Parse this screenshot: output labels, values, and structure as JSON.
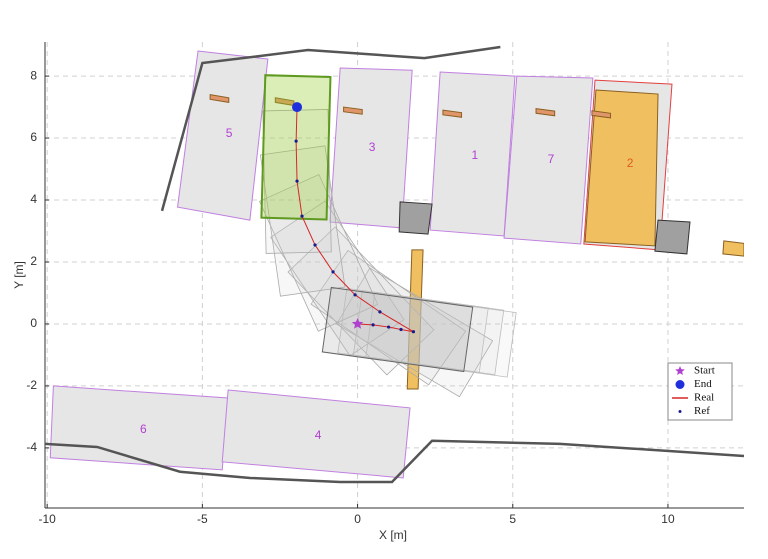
{
  "chart_data": {
    "type": "path",
    "xlabel": "X [m]",
    "ylabel": "Y [m]",
    "xlim": [
      -10.07,
      12.45
    ],
    "ylim": [
      -5.94,
      9.1
    ],
    "xticks": [
      -10,
      -5,
      0,
      5,
      10
    ],
    "yticks": [
      -4,
      -2,
      0,
      2,
      4,
      6,
      8
    ],
    "grid": true,
    "legend_corner": "lower right",
    "boundaries": [
      {
        "x": [
          -6.3,
          -5.0,
          -1.6,
          2.15,
          4.6
        ],
        "y": [
          3.65,
          8.42,
          8.84,
          8.58,
          8.94
        ]
      },
      {
        "x": [
          -10.07,
          -8.39,
          -5.72,
          -3.46,
          -0.56,
          1.11,
          2.4,
          6.52,
          12.45
        ],
        "y": [
          -3.87,
          -3.97,
          -4.77,
          -4.97,
          -5.1,
          -5.1,
          -3.77,
          -3.87,
          -4.26
        ]
      }
    ],
    "slots": [
      {
        "label": "5",
        "color": "#b040d0",
        "x": [
          -5.14,
          -2.89,
          -3.47,
          -5.8
        ],
        "y": [
          8.81,
          8.55,
          3.35,
          3.77
        ],
        "label_x": -4.14,
        "label_y": 6.13
      },
      {
        "label": "3",
        "color": "#b040d0",
        "x": [
          -0.56,
          1.76,
          1.43,
          -0.89
        ],
        "y": [
          8.26,
          8.19,
          3.1,
          3.29
        ],
        "label_x": 0.47,
        "label_y": 5.68
      },
      {
        "label": "1",
        "color": "#b040d0",
        "x": [
          2.66,
          5.07,
          4.72,
          2.34
        ],
        "y": [
          8.13,
          8.0,
          2.84,
          3.03
        ],
        "label_x": 3.78,
        "label_y": 5.42
      },
      {
        "label": "7",
        "color": "#b040d0",
        "x": [
          5.13,
          7.58,
          7.19,
          4.72
        ],
        "y": [
          8.0,
          7.94,
          2.58,
          2.77
        ],
        "label_x": 6.23,
        "label_y": 5.29
      },
      {
        "label": "2",
        "color": "#e05a20",
        "x": [
          7.65,
          10.13,
          9.74,
          7.29
        ],
        "y": [
          7.87,
          7.74,
          2.39,
          2.58
        ],
        "label_x": 8.78,
        "label_y": 5.16
      },
      {
        "label": "6",
        "color": "#b040d0",
        "x": [
          -9.8,
          -4.17,
          -4.36,
          -9.9
        ],
        "y": [
          -2.0,
          -2.39,
          -4.71,
          -4.32
        ],
        "label_x": -6.9,
        "label_y": -3.42
      },
      {
        "label": "4",
        "color": "#b040d0",
        "x": [
          -4.17,
          1.69,
          1.47,
          -4.36
        ],
        "y": [
          -2.13,
          -2.71,
          -4.97,
          -4.45
        ],
        "label_x": -1.27,
        "label_y": -3.61
      }
    ],
    "obstacles": [
      {
        "color": "#f0c060",
        "x": [
          7.68,
          9.68,
          9.58,
          7.33
        ],
        "y": [
          7.55,
          7.42,
          2.52,
          2.65
        ]
      },
      {
        "color": "#a0a0a0",
        "x": [
          1.37,
          2.4,
          2.27,
          1.34
        ],
        "y": [
          3.94,
          3.87,
          2.9,
          2.97
        ]
      },
      {
        "color": "#a0a0a0",
        "x": [
          9.68,
          10.71,
          10.61,
          9.58
        ],
        "y": [
          3.35,
          3.29,
          2.26,
          2.35
        ]
      },
      {
        "color": "#f0c060",
        "x": [
          1.75,
          2.11,
          1.95,
          1.6
        ],
        "y": [
          2.39,
          2.39,
          -2.1,
          -2.1
        ]
      },
      {
        "color": "#f0c060",
        "x": [
          11.8,
          12.45,
          12.45,
          11.77
        ],
        "y": [
          2.68,
          2.6,
          2.19,
          2.26
        ]
      },
      {
        "color": "#e0956a",
        "x": [
          -4.75,
          -4.15,
          -4.15,
          -4.75
        ],
        "y": [
          7.4,
          7.3,
          7.15,
          7.25
        ]
      },
      {
        "color": "#e0956a",
        "x": [
          -2.65,
          -2.05,
          -2.05,
          -2.65
        ],
        "y": [
          7.3,
          7.2,
          7.05,
          7.15
        ]
      },
      {
        "color": "#e0956a",
        "x": [
          -0.45,
          0.15,
          0.15,
          -0.45
        ],
        "y": [
          7.0,
          6.92,
          6.77,
          6.85
        ]
      },
      {
        "color": "#e0956a",
        "x": [
          2.75,
          3.35,
          3.35,
          2.75
        ],
        "y": [
          6.9,
          6.82,
          6.67,
          6.75
        ]
      },
      {
        "color": "#e0956a",
        "x": [
          5.75,
          6.35,
          6.35,
          5.75
        ],
        "y": [
          6.95,
          6.87,
          6.72,
          6.8
        ]
      },
      {
        "color": "#e0956a",
        "x": [
          7.55,
          8.15,
          8.15,
          7.55
        ],
        "y": [
          6.88,
          6.8,
          6.65,
          6.73
        ]
      }
    ],
    "series": [
      {
        "name": "Real",
        "color": "#d62728",
        "x": [
          0,
          0.5,
          1.0,
          1.4,
          1.8,
          0.72,
          -0.08,
          -0.79,
          -1.37,
          -1.79,
          -1.95,
          -1.98,
          -1.95
        ],
        "y": [
          0,
          -0.03,
          -0.1,
          -0.18,
          -0.25,
          0.39,
          0.94,
          1.68,
          2.55,
          3.48,
          4.61,
          5.9,
          7.0
        ]
      },
      {
        "name": "Ref",
        "color": "#1a1a8c",
        "x": [
          0,
          0.5,
          1.0,
          1.4,
          1.8,
          0.72,
          -0.08,
          -0.79,
          -1.37,
          -1.79,
          -1.95,
          -1.98,
          -1.95
        ],
        "y": [
          0,
          -0.03,
          -0.1,
          -0.18,
          -0.25,
          0.39,
          0.94,
          1.68,
          2.55,
          3.48,
          4.61,
          5.9,
          7.0
        ]
      }
    ],
    "start": {
      "name": "Start",
      "color": "#b040d0",
      "x": 0,
      "y": 0
    },
    "end": {
      "name": "End",
      "color": "#1f2fdc",
      "x": -1.95,
      "y": 7.0
    }
  }
}
